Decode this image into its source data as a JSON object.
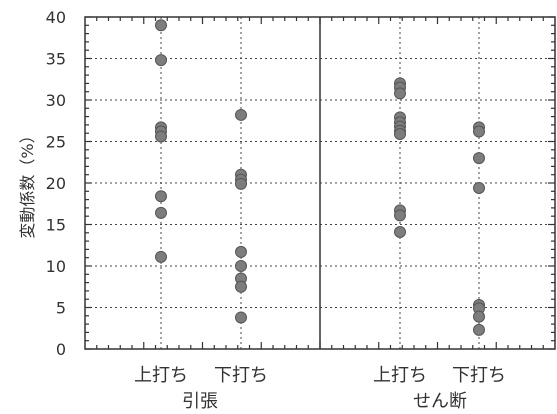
{
  "colors": {
    "point": "#7d7d7d",
    "axis": "#333333"
  },
  "chart_data": {
    "type": "scatter",
    "ylabel": "変動係数（%）",
    "ylim": [
      0,
      40
    ],
    "yticks": [
      0,
      5,
      10,
      15,
      20,
      25,
      30,
      35,
      40
    ],
    "grid": true,
    "groups": [
      {
        "label": "引張",
        "categories": [
          "上打ち",
          "下打ち"
        ]
      },
      {
        "label": "せん断",
        "categories": [
          "上打ち",
          "下打ち"
        ]
      }
    ],
    "series": [
      {
        "group": "引張",
        "category": "上打ち",
        "values": [
          39,
          34.8,
          26.7,
          26.2,
          25.6,
          18.4,
          16.4,
          11.1
        ]
      },
      {
        "group": "引張",
        "category": "下打ち",
        "values": [
          28.2,
          21,
          20.4,
          19.9,
          11.7,
          10,
          8.5,
          7.5,
          3.8
        ]
      },
      {
        "group": "せん断",
        "category": "上打ち",
        "values": [
          32,
          31.5,
          30.8,
          27.9,
          27.3,
          26.8,
          26.3,
          25.9,
          16.7,
          16.1,
          14.1
        ]
      },
      {
        "group": "せん断",
        "category": "下打ち",
        "values": [
          26.7,
          26.2,
          23,
          19.4,
          5.3,
          4.9,
          3.9,
          2.3
        ]
      }
    ]
  }
}
